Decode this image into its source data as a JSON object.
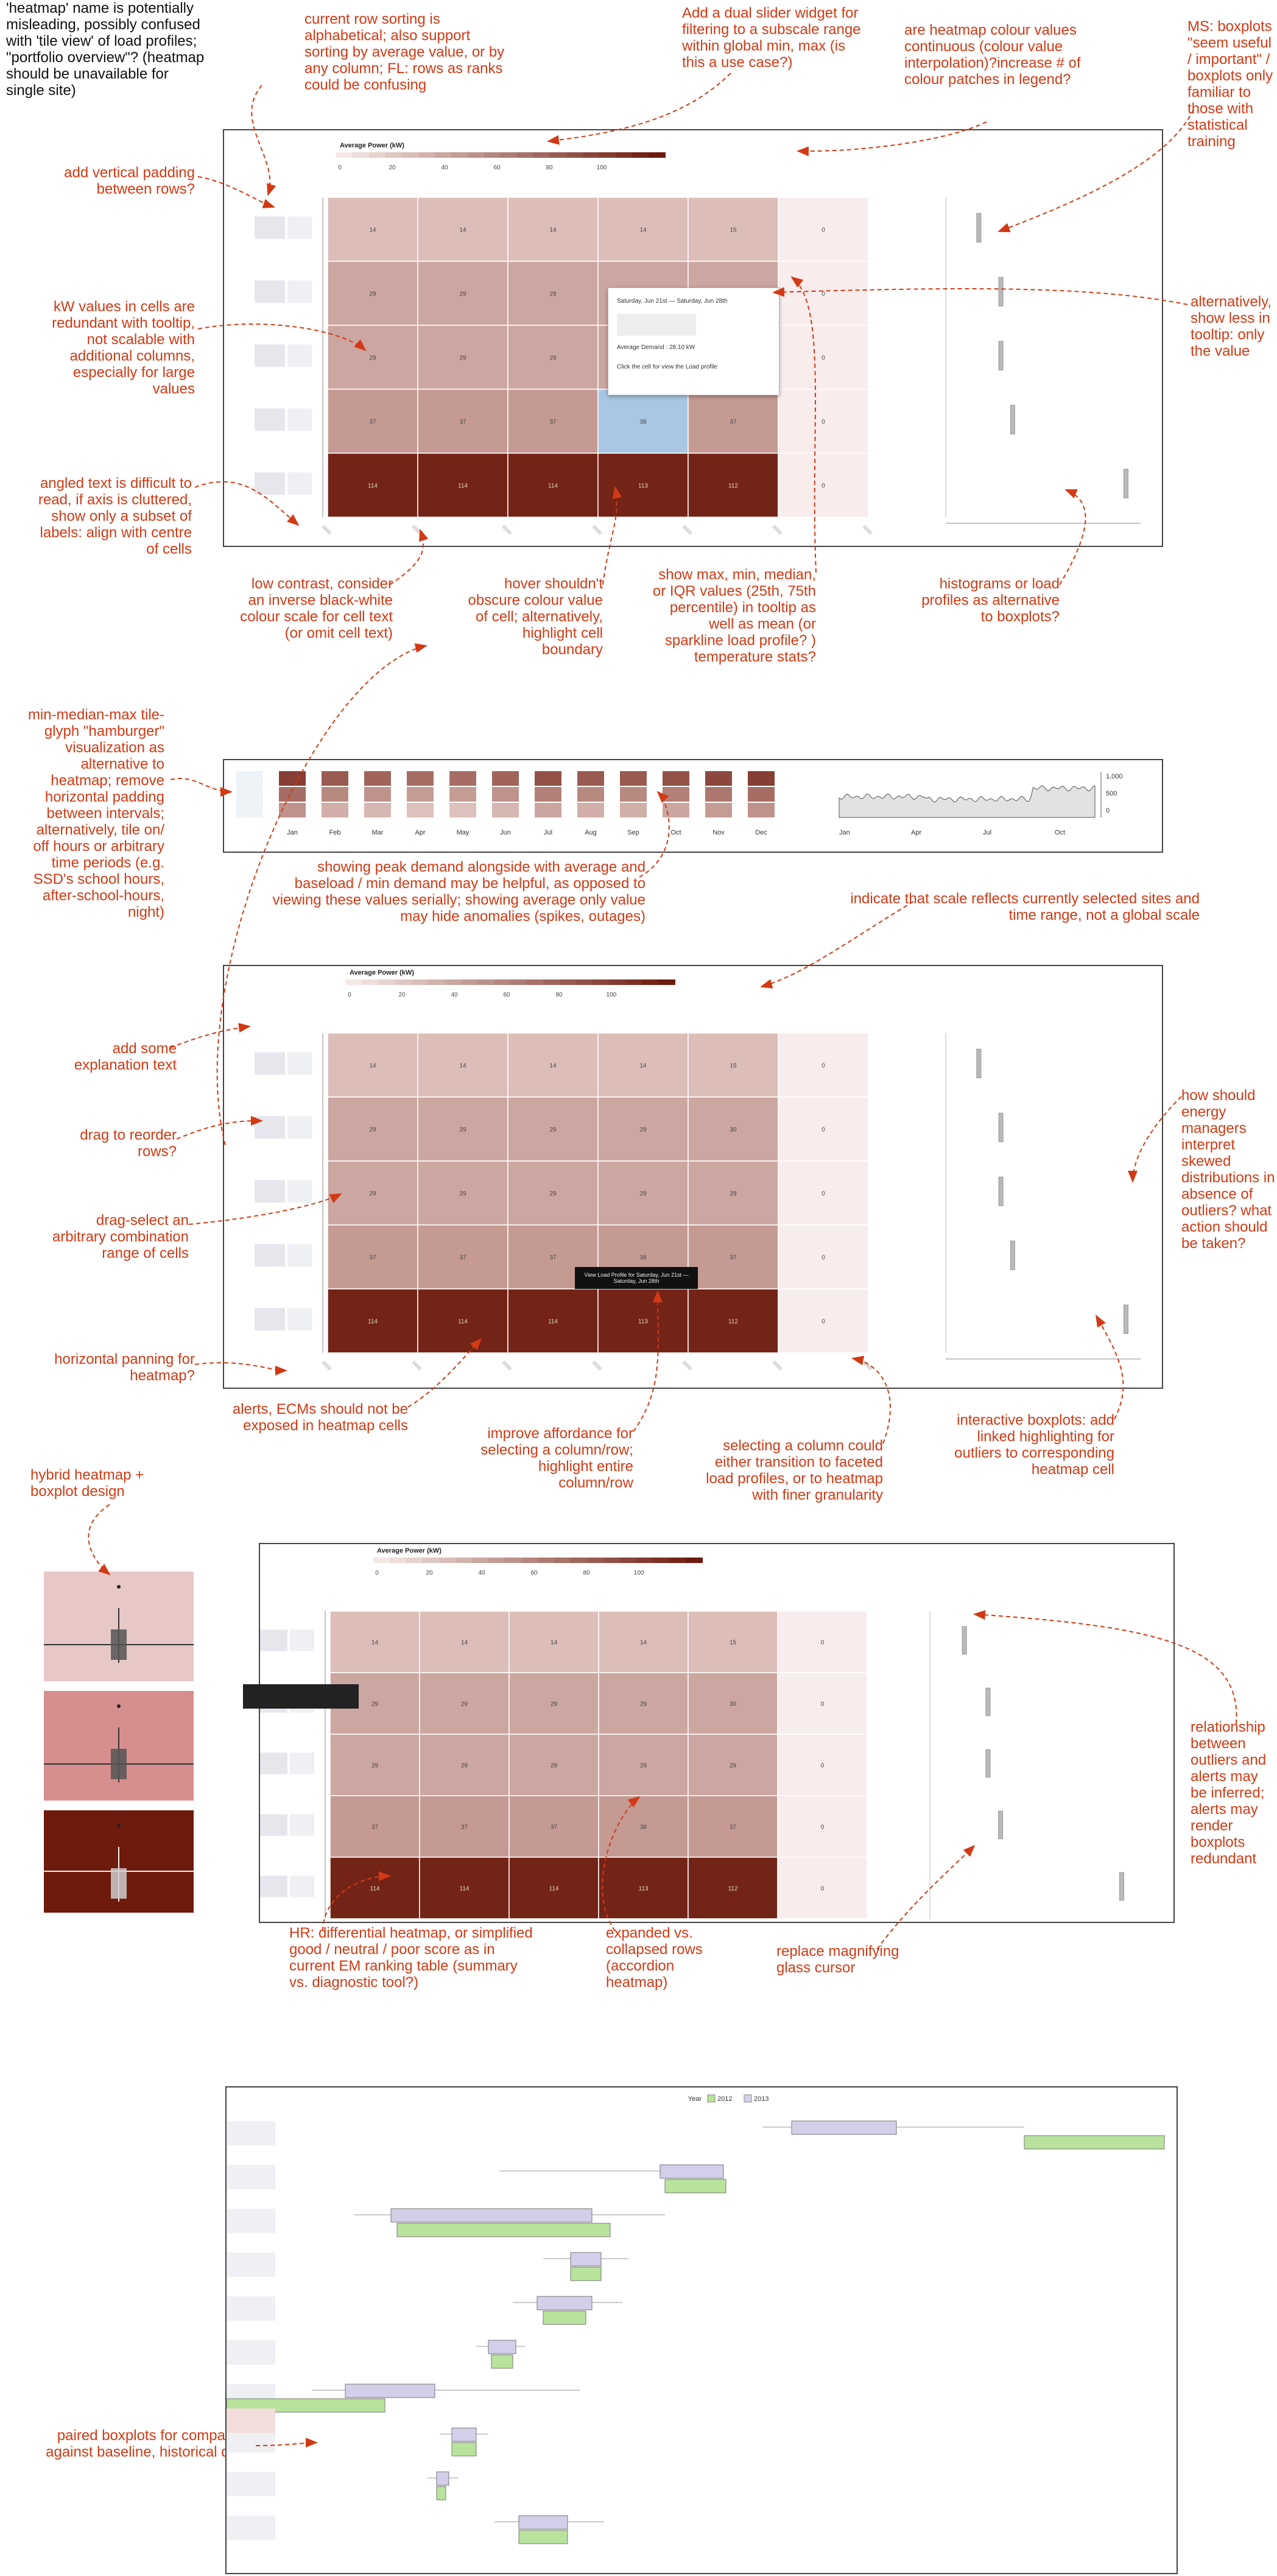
{
  "annotations": {
    "heatmap_name": "'heatmap' name is potentially misleading, possibly confused with 'tile view' of load profiles; \"portfolio overview\"? (heatmap should be unavailable for single site)",
    "row_sorting": "current row sorting is alphabetical; also support sorting by average value, or by any column; FL: rows as ranks could be confusing",
    "dual_slider": "Add a dual slider widget for filtering to a subscale range within global min, max (is this a use case?)",
    "colour_continuous": "are heatmap colour values continuous (colour value interpolation)?increase # of colour patches in legend?",
    "ms_boxplots": "MS: boxplots \"seem useful / important\" / boxplots only familiar to those with statistical training",
    "vertical_padding": "add vertical padding between rows?",
    "kw_redundant": "kW values in cells are redundant with tooltip, not scalable with additional columns, especially for large values",
    "less_tooltip": "alternatively, show less in tooltip: only the value",
    "angled_text": "angled text is difficult to read, if axis is cluttered, show only a subset of labels: align with centre of cells",
    "low_contrast": "low contrast, consider an inverse black-white colour scale for cell text (or omit cell text)",
    "hover_obscure": "hover shouldn't obscure colour value of cell; alternatively, highlight cell boundary",
    "tooltip_stats": "show max, min, median, or IQR values (25th, 75th percentile) in tooltip as well as mean (or sparkline load profile? ) temperature stats?",
    "histograms": "histograms or load profiles as alternative to boxplots?",
    "hamburger": "min-median-max tile-glyph \"hamburger\" visualization as alternative to heatmap; remove horizontal padding between intervals; alternatively, tile on/ off hours or arbitrary time periods (e.g. SSD's school hours, after-school-hours, night)",
    "peak_demand": "showing peak demand alongside with average and baseload / min demand may be helpful, as opposed to viewing these values serially; showing average only value may hide anomalies (spikes, outages)",
    "scale_reflects": "indicate that scale reflects currently selected sites and time range, not a global scale",
    "explanation": "add some explanation text",
    "drag_reorder": "drag to reorder rows?",
    "skewed": "how should energy managers interpret skewed distributions in absence of outliers? what action should be taken?",
    "drag_select": "drag-select an arbitrary combination range of cells",
    "panning": "horizontal panning for heatmap?",
    "alerts_cells": "alerts, ECMs should not be exposed in heatmap cells",
    "affordance": "improve affordance for selecting a column/row; highlight entire column/row",
    "select_column": "selecting a column could either transition to faceted load profiles, or to heatmap with finer granularity",
    "interactive_boxplots": "interactive boxplots: add linked highlighting for outliers to corresponding heatmap cell",
    "hybrid": "hybrid heatmap + boxplot design",
    "relationship": "relationship between outliers and alerts may be inferred; alerts may render boxplots redundant",
    "hr_differential": "HR: differential heatmap, or simplified good / neutral / poor score as in current EM ranking table (summary vs. diagnostic tool?)",
    "expanded": "expanded vs. collapsed rows (accordion heatmap)",
    "magnifying": "replace magnifying glass cursor",
    "paired": "paired boxplots for comparing against baseline, historical data"
  },
  "legend": {
    "title": "Average Power (kW)",
    "ticks": [
      "0",
      "20",
      "40",
      "60",
      "80",
      "100"
    ]
  },
  "heatmap": {
    "values": [
      [
        "14",
        "14",
        "14",
        "14",
        "15",
        "0"
      ],
      [
        "29",
        "29",
        "29",
        "29",
        "30",
        "0"
      ],
      [
        "29",
        "29",
        "29",
        "29",
        "29",
        "0"
      ],
      [
        "37",
        "37",
        "37",
        "38",
        "37",
        "0"
      ],
      [
        "114",
        "114",
        "114",
        "113",
        "112",
        "0"
      ]
    ],
    "levels": [
      14,
      29,
      29,
      37,
      114
    ],
    "max": 120
  },
  "tooltip": {
    "date_range": "Saturday, Jun 21st — Saturday, Jun 28th",
    "demand": "Average Demand : 28.10 kW",
    "hint": "Click the cell for view the Load profile"
  },
  "view_profile_tooltip": "View Load Profile for Saturday, Jun 21st — Saturday, Jun 28th",
  "months": [
    "Jan",
    "Feb",
    "Mar",
    "Apr",
    "May",
    "Jun",
    "Jul",
    "Aug",
    "Sep",
    "Oct",
    "Nov",
    "Dec"
  ],
  "sparkline": {
    "x_labels": [
      "Jan",
      "Apr",
      "Jul",
      "Oct"
    ],
    "y_labels": [
      "1,000",
      "500",
      "0"
    ]
  },
  "paired_chart": {
    "legend_title": "Year",
    "series": [
      "2012",
      "2013"
    ],
    "colors": {
      "2012": "#b9e39c",
      "2013": "#d3cfe9"
    }
  },
  "colors": {
    "annotation": "#d23a15",
    "heatmap_max": "#6e1a0d",
    "heatmap_min": "#ead3cf",
    "hover_cell": "#a9c7e3"
  }
}
